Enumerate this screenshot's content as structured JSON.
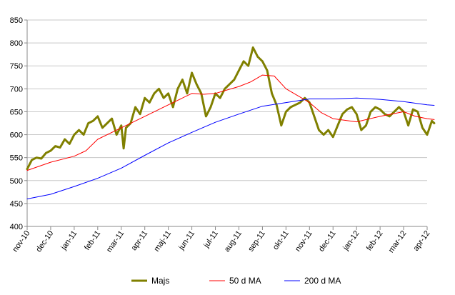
{
  "chart_data": {
    "type": "line",
    "title": "",
    "xlabel": "",
    "ylabel": "",
    "ylim": [
      400,
      850
    ],
    "yticks": [
      400,
      450,
      500,
      550,
      600,
      650,
      700,
      750,
      800,
      850
    ],
    "categories": [
      "nov-10",
      "dec-10",
      "jan-11",
      "feb-11",
      "mar-11",
      "apr-11",
      "maj-11",
      "jun-11",
      "jul-11",
      "aug-11",
      "sep-11",
      "okt-11",
      "nov-11",
      "dec-11",
      "jan-12",
      "feb-12",
      "mar-12",
      "apr-12"
    ],
    "grid": true,
    "legend_position": "bottom",
    "series": [
      {
        "name": "Majs",
        "color": "#808000",
        "width": 3,
        "values": [
          [
            0,
            525
          ],
          [
            0.2,
            545
          ],
          [
            0.4,
            550
          ],
          [
            0.6,
            548
          ],
          [
            0.8,
            560
          ],
          [
            1,
            565
          ],
          [
            1.2,
            575
          ],
          [
            1.4,
            572
          ],
          [
            1.6,
            590
          ],
          [
            1.8,
            580
          ],
          [
            2,
            600
          ],
          [
            2.2,
            610
          ],
          [
            2.4,
            600
          ],
          [
            2.6,
            625
          ],
          [
            2.8,
            630
          ],
          [
            3,
            640
          ],
          [
            3.2,
            615
          ],
          [
            3.4,
            625
          ],
          [
            3.6,
            635
          ],
          [
            3.8,
            600
          ],
          [
            4,
            620
          ],
          [
            4.1,
            570
          ],
          [
            4.2,
            615
          ],
          [
            4.4,
            625
          ],
          [
            4.6,
            660
          ],
          [
            4.8,
            645
          ],
          [
            5,
            680
          ],
          [
            5.2,
            670
          ],
          [
            5.4,
            690
          ],
          [
            5.6,
            700
          ],
          [
            5.8,
            680
          ],
          [
            6,
            690
          ],
          [
            6.2,
            660
          ],
          [
            6.4,
            700
          ],
          [
            6.6,
            720
          ],
          [
            6.8,
            690
          ],
          [
            7,
            735
          ],
          [
            7.2,
            710
          ],
          [
            7.4,
            690
          ],
          [
            7.6,
            640
          ],
          [
            7.8,
            660
          ],
          [
            8,
            690
          ],
          [
            8.2,
            680
          ],
          [
            8.4,
            700
          ],
          [
            8.6,
            710
          ],
          [
            8.8,
            720
          ],
          [
            9,
            740
          ],
          [
            9.2,
            760
          ],
          [
            9.4,
            750
          ],
          [
            9.6,
            790
          ],
          [
            9.8,
            770
          ],
          [
            10,
            760
          ],
          [
            10.2,
            740
          ],
          [
            10.4,
            690
          ],
          [
            10.6,
            665
          ],
          [
            10.8,
            620
          ],
          [
            11,
            650
          ],
          [
            11.2,
            660
          ],
          [
            11.4,
            665
          ],
          [
            11.6,
            670
          ],
          [
            11.8,
            680
          ],
          [
            12,
            670
          ],
          [
            12.2,
            640
          ],
          [
            12.4,
            610
          ],
          [
            12.6,
            600
          ],
          [
            12.8,
            610
          ],
          [
            13,
            595
          ],
          [
            13.2,
            620
          ],
          [
            13.4,
            645
          ],
          [
            13.6,
            655
          ],
          [
            13.8,
            660
          ],
          [
            14,
            645
          ],
          [
            14.2,
            610
          ],
          [
            14.4,
            620
          ],
          [
            14.6,
            650
          ],
          [
            14.8,
            660
          ],
          [
            15,
            655
          ],
          [
            15.2,
            645
          ],
          [
            15.4,
            640
          ],
          [
            15.6,
            650
          ],
          [
            15.8,
            660
          ],
          [
            16,
            650
          ],
          [
            16.2,
            620
          ],
          [
            16.4,
            655
          ],
          [
            16.6,
            650
          ],
          [
            16.8,
            615
          ],
          [
            17,
            600
          ],
          [
            17.2,
            630
          ],
          [
            17.3,
            625
          ]
        ]
      },
      {
        "name": "50 d MA",
        "color": "#ff0000",
        "width": 1,
        "values": [
          [
            0,
            522
          ],
          [
            1,
            540
          ],
          [
            2,
            553
          ],
          [
            2.5,
            565
          ],
          [
            3,
            590
          ],
          [
            4,
            615
          ],
          [
            5,
            640
          ],
          [
            6,
            665
          ],
          [
            7,
            690
          ],
          [
            7.5,
            688
          ],
          [
            8,
            690
          ],
          [
            9,
            705
          ],
          [
            9.5,
            715
          ],
          [
            10,
            730
          ],
          [
            10.5,
            728
          ],
          [
            11,
            700
          ],
          [
            12,
            670
          ],
          [
            12.5,
            648
          ],
          [
            13,
            635
          ],
          [
            14,
            628
          ],
          [
            15,
            640
          ],
          [
            16,
            650
          ],
          [
            16.5,
            640
          ],
          [
            17,
            635
          ],
          [
            17.3,
            633
          ]
        ]
      },
      {
        "name": "200 d MA",
        "color": "#0000ff",
        "width": 1,
        "values": [
          [
            0,
            460
          ],
          [
            1,
            470
          ],
          [
            2,
            487
          ],
          [
            3,
            505
          ],
          [
            4,
            527
          ],
          [
            5,
            555
          ],
          [
            6,
            582
          ],
          [
            7,
            605
          ],
          [
            8,
            627
          ],
          [
            9,
            645
          ],
          [
            10,
            662
          ],
          [
            11,
            670
          ],
          [
            12,
            678
          ],
          [
            13,
            678
          ],
          [
            14,
            680
          ],
          [
            15,
            677
          ],
          [
            16,
            672
          ],
          [
            17,
            665
          ],
          [
            17.3,
            664
          ]
        ]
      }
    ]
  }
}
